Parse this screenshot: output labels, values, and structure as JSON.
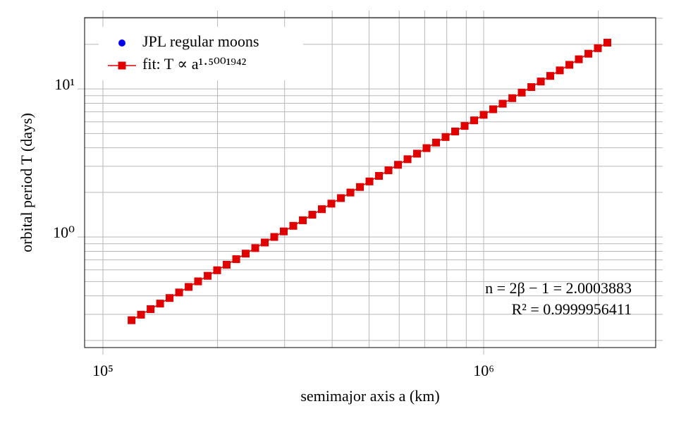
{
  "chart_data": {
    "type": "scatter",
    "log_x": true,
    "log_y": true,
    "grid": true,
    "legend": "upper left",
    "xlabel": "semimajor axis a (km)",
    "ylabel": "orbital period T (days)",
    "xlim": [
      89500,
      2830000
    ],
    "ylim": [
      0.179,
      30.3
    ],
    "xticks": [
      {
        "value": 100000,
        "label": "10⁵"
      },
      {
        "value": 1000000,
        "label": "10⁶"
      }
    ],
    "yticks": [
      {
        "value": 1,
        "label": "10⁰"
      },
      {
        "value": 10,
        "label": "10¹"
      }
    ],
    "x_minor_ticks": [
      200000,
      300000,
      400000,
      500000,
      600000,
      700000,
      800000,
      900000,
      2000000
    ],
    "y_minor_ticks": [
      0.2,
      0.3,
      0.4,
      0.5,
      0.6,
      0.7,
      0.8,
      0.9,
      2,
      3,
      4,
      5,
      6,
      7,
      8,
      9,
      20,
      30
    ],
    "annotations": [
      "n = 2β − 1 = 2.0003883",
      "R² = 0.9999956411"
    ],
    "series": [
      {
        "name": "JPL regular moons",
        "color": "#0000ee",
        "x": [],
        "values": []
      },
      {
        "name": "fit: T ∝ a¹·⁵⁰⁰¹⁹⁴²",
        "color": "#e00000",
        "x": [
          118900,
          125900,
          133400,
          141300,
          149600,
          158500,
          167900,
          177800,
          188400,
          199500,
          211300,
          223900,
          237100,
          251200,
          266100,
          281800,
          298500,
          316200,
          335000,
          354800,
          375800,
          398100,
          421700,
          446700,
          473200,
          501200,
          530900,
          562300,
          595700,
          631000,
          668300,
          707900,
          749900,
          794300,
          841400,
          891300,
          944100,
          1000000,
          1059000,
          1122000,
          1189000,
          1259000,
          1334000,
          1413000,
          1496000,
          1585000,
          1679000,
          1778000,
          1884000,
          1995000,
          2113000
        ],
        "values": [
          0.2739,
          0.2985,
          0.3254,
          0.3548,
          0.3868,
          0.4217,
          0.4597,
          0.5012,
          0.5464,
          0.5957,
          0.6494,
          0.7079,
          0.7718,
          0.8414,
          0.9173,
          1.0,
          1.09,
          1.189,
          1.296,
          1.413,
          1.54,
          1.679,
          1.83,
          1.995,
          2.175,
          2.371,
          2.585,
          2.818,
          3.072,
          3.35,
          3.652,
          3.981,
          4.34,
          4.732,
          5.158,
          5.623,
          6.131,
          6.683,
          7.286,
          7.943,
          8.66,
          9.441,
          10.29,
          11.22,
          12.24,
          13.34,
          14.54,
          15.85,
          17.28,
          18.84,
          20.53
        ]
      }
    ]
  }
}
